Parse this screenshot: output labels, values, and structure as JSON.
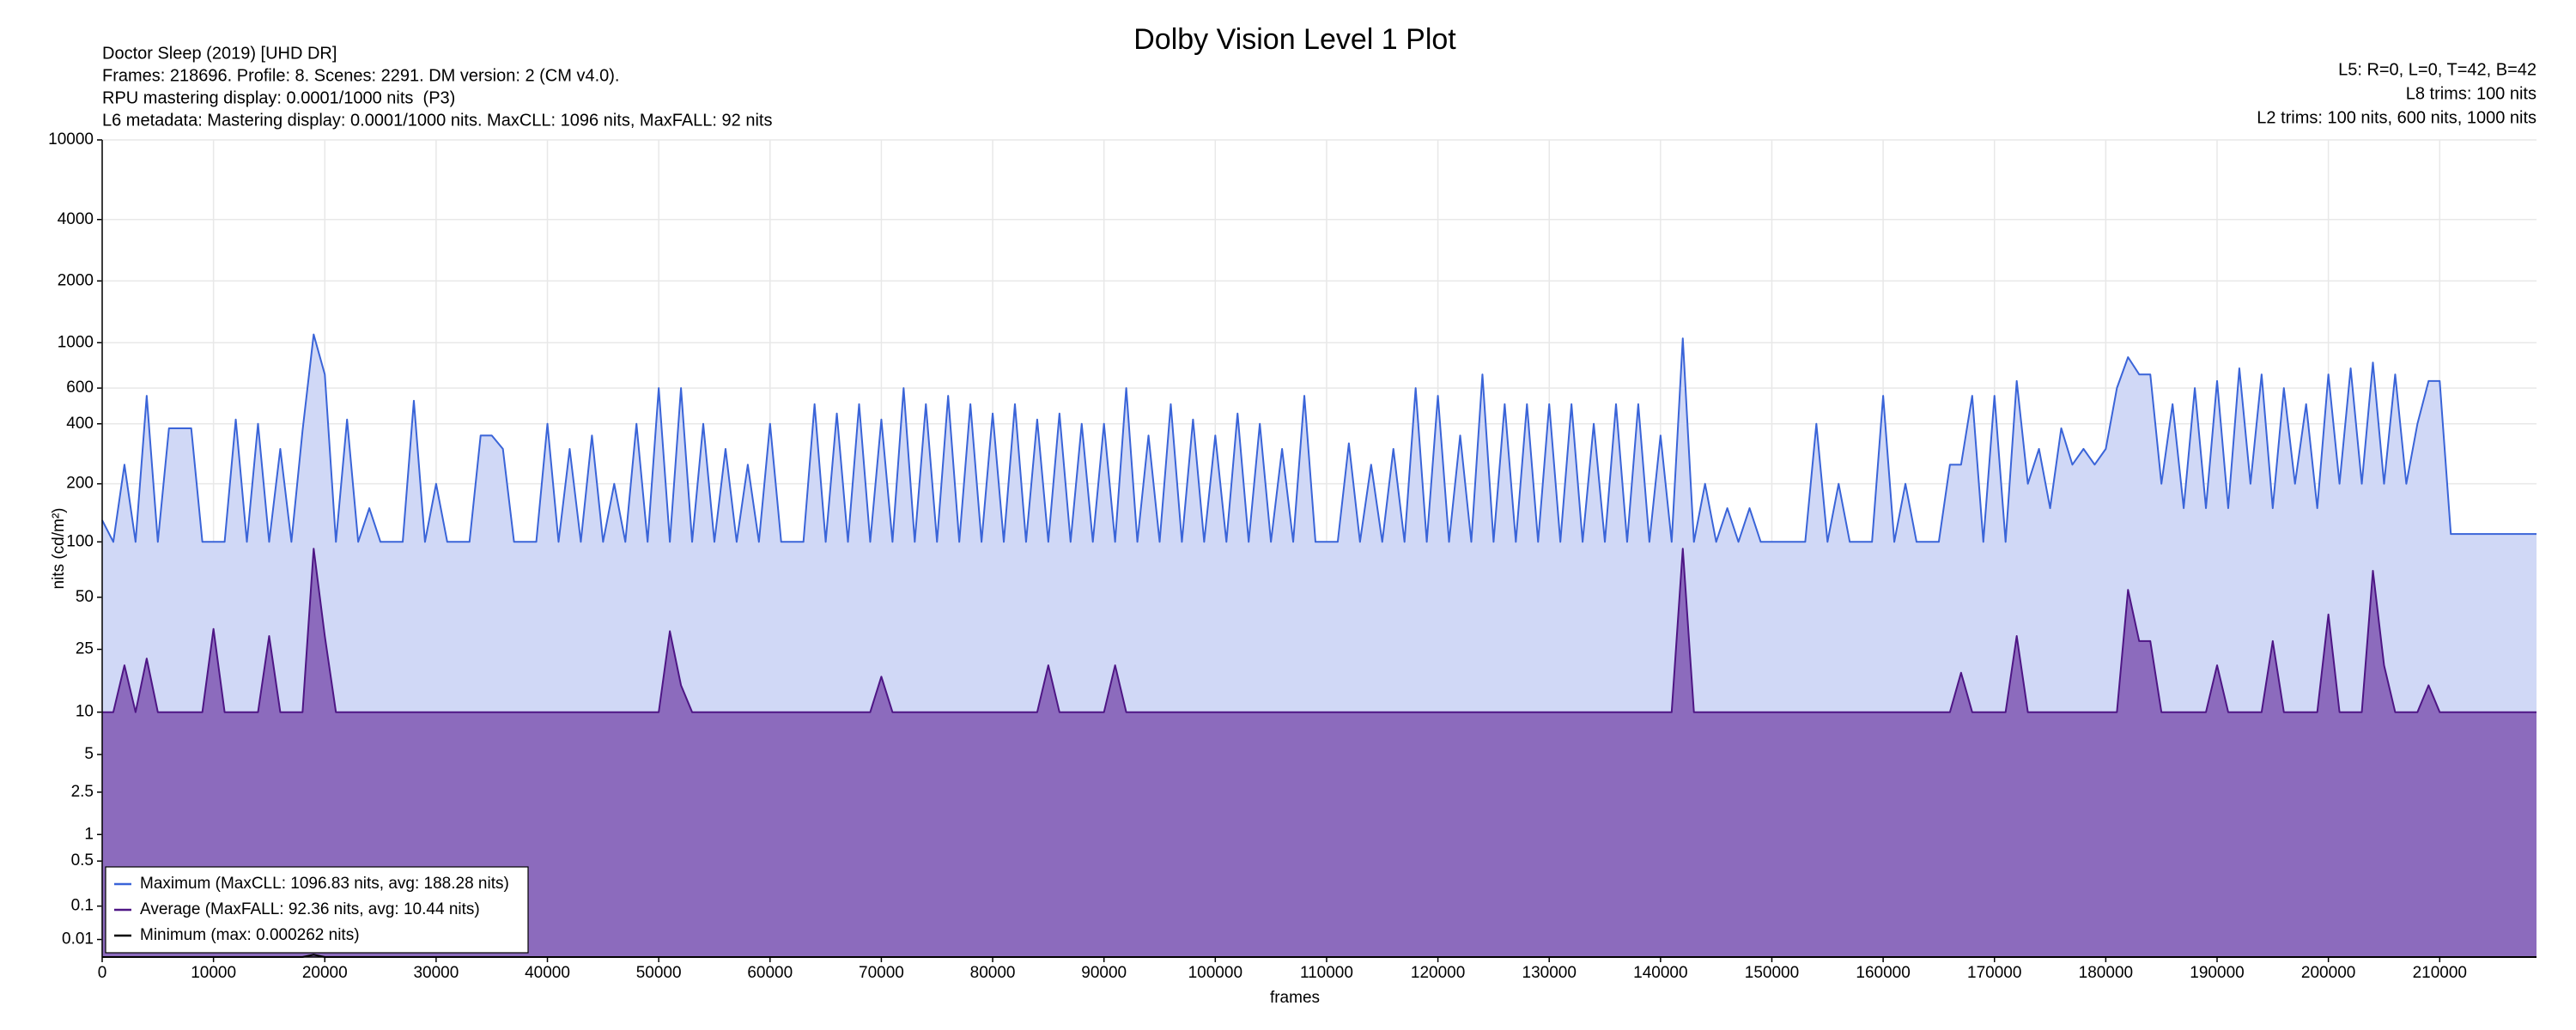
{
  "chart_data": {
    "type": "line",
    "title": "Dolby Vision Level 1 Plot",
    "header_left": [
      "Doctor Sleep (2019) [UHD DR]",
      "Frames: 218696. Profile: 8. Scenes: 2291. DM version: 2 (CM v4.0).",
      "RPU mastering display: 0.0001/1000 nits  (P3)",
      "L6 metadata: Mastering display: 0.0001/1000 nits. MaxCLL: 1096 nits, MaxFALL: 92 nits"
    ],
    "header_right": [
      "L5: R=0, L=0, T=42, B=42",
      "L8 trims: 100 nits",
      "L2 trims: 100 nits, 600 nits, 1000 nits"
    ],
    "xlabel": "frames",
    "ylabel": "nits (cd/m²)",
    "yscale": "pq",
    "grid": true,
    "legend": "lower left",
    "xlim": [
      0,
      218696
    ],
    "xticks": [
      0,
      10000,
      20000,
      30000,
      40000,
      50000,
      60000,
      70000,
      80000,
      90000,
      100000,
      110000,
      120000,
      130000,
      140000,
      150000,
      160000,
      170000,
      180000,
      190000,
      200000,
      210000
    ],
    "ylim": [
      0,
      10000
    ],
    "yticks": [
      0.01,
      0.1,
      0.5,
      1,
      2.5,
      5,
      10,
      25,
      50,
      100,
      200,
      400,
      600,
      1000,
      2000,
      4000,
      10000
    ],
    "x": [
      0,
      1000,
      2000,
      3000,
      4000,
      5000,
      6000,
      7000,
      8000,
      9000,
      10000,
      11000,
      12000,
      13000,
      14000,
      15000,
      16000,
      17000,
      18000,
      19000,
      20000,
      21000,
      22000,
      23000,
      24000,
      25000,
      26000,
      27000,
      28000,
      29000,
      30000,
      31000,
      32000,
      33000,
      34000,
      35000,
      36000,
      37000,
      38000,
      39000,
      40000,
      41000,
      42000,
      43000,
      44000,
      45000,
      46000,
      47000,
      48000,
      49000,
      50000,
      51000,
      52000,
      53000,
      54000,
      55000,
      56000,
      57000,
      58000,
      59000,
      60000,
      61000,
      62000,
      63000,
      64000,
      65000,
      66000,
      67000,
      68000,
      69000,
      70000,
      71000,
      72000,
      73000,
      74000,
      75000,
      76000,
      77000,
      78000,
      79000,
      80000,
      81000,
      82000,
      83000,
      84000,
      85000,
      86000,
      87000,
      88000,
      89000,
      90000,
      91000,
      92000,
      93000,
      94000,
      95000,
      96000,
      97000,
      98000,
      99000,
      100000,
      101000,
      102000,
      103000,
      104000,
      105000,
      106000,
      107000,
      108000,
      109000,
      110000,
      111000,
      112000,
      113000,
      114000,
      115000,
      116000,
      117000,
      118000,
      119000,
      120000,
      121000,
      122000,
      123000,
      124000,
      125000,
      126000,
      127000,
      128000,
      129000,
      130000,
      131000,
      132000,
      133000,
      134000,
      135000,
      136000,
      137000,
      138000,
      139000,
      140000,
      141000,
      142000,
      143000,
      144000,
      145000,
      146000,
      147000,
      148000,
      149000,
      150000,
      151000,
      152000,
      153000,
      154000,
      155000,
      156000,
      157000,
      158000,
      159000,
      160000,
      161000,
      162000,
      163000,
      164000,
      165000,
      166000,
      167000,
      168000,
      169000,
      170000,
      171000,
      172000,
      173000,
      174000,
      175000,
      176000,
      177000,
      178000,
      179000,
      180000,
      181000,
      182000,
      183000,
      184000,
      185000,
      186000,
      187000,
      188000,
      189000,
      190000,
      191000,
      192000,
      193000,
      194000,
      195000,
      196000,
      197000,
      198000,
      199000,
      200000,
      201000,
      202000,
      203000,
      204000,
      205000,
      206000,
      207000,
      208000,
      209000,
      210000,
      211000,
      212000,
      213000,
      214000,
      215000,
      216000,
      217000,
      218000,
      218696
    ],
    "series": [
      {
        "name": "Maximum (MaxCLL: 1096.83 nits, avg: 188.28 nits)",
        "color": "#3a64d8",
        "fill": "#d0d8f6",
        "values": [
          130,
          100,
          250,
          100,
          550,
          100,
          380,
          380,
          380,
          100,
          100,
          100,
          420,
          100,
          400,
          100,
          300,
          100,
          370,
          1097,
          700,
          100,
          420,
          100,
          150,
          100,
          100,
          100,
          520,
          100,
          200,
          100,
          100,
          100,
          350,
          350,
          300,
          100,
          100,
          100,
          400,
          100,
          300,
          100,
          350,
          100,
          200,
          100,
          400,
          100,
          600,
          100,
          600,
          100,
          400,
          100,
          300,
          100,
          250,
          100,
          400,
          100,
          100,
          100,
          500,
          100,
          450,
          100,
          500,
          100,
          420,
          100,
          600,
          100,
          500,
          100,
          550,
          100,
          500,
          100,
          450,
          100,
          500,
          100,
          420,
          100,
          450,
          100,
          400,
          100,
          400,
          100,
          600,
          100,
          350,
          100,
          500,
          100,
          420,
          100,
          350,
          100,
          450,
          100,
          400,
          100,
          300,
          100,
          550,
          100,
          100,
          100,
          320,
          100,
          250,
          100,
          300,
          100,
          600,
          100,
          550,
          100,
          350,
          100,
          700,
          100,
          500,
          100,
          500,
          100,
          500,
          100,
          500,
          100,
          400,
          100,
          500,
          100,
          500,
          100,
          350,
          100,
          1050,
          100,
          200,
          100,
          150,
          100,
          150,
          100,
          100,
          100,
          100,
          100,
          400,
          100,
          200,
          100,
          100,
          100,
          550,
          100,
          200,
          100,
          100,
          100,
          250,
          250,
          550,
          100,
          550,
          100,
          650,
          200,
          300,
          150,
          380,
          250,
          300,
          250,
          300,
          600,
          850,
          700,
          700,
          200,
          500,
          150,
          600,
          150,
          650,
          150,
          750,
          200,
          700,
          150,
          600,
          200,
          500,
          150,
          700,
          200,
          750,
          200,
          800,
          200,
          700,
          200,
          400,
          650,
          650,
          110,
          110,
          110,
          110,
          110,
          110,
          110,
          110,
          110
        ]
      },
      {
        "name": "Average (MaxFALL: 92.36 nits, avg: 10.44 nits)",
        "color": "#4e1685",
        "fill": "#8c6bbd",
        "values": [
          10,
          10,
          20,
          10,
          22,
          10,
          10,
          10,
          10,
          10,
          33,
          10,
          10,
          10,
          10,
          30,
          10,
          10,
          10,
          92,
          30,
          10,
          10,
          10,
          10,
          10,
          10,
          10,
          10,
          10,
          10,
          10,
          10,
          10,
          10,
          10,
          10,
          10,
          10,
          10,
          10,
          10,
          10,
          10,
          10,
          10,
          10,
          10,
          10,
          10,
          10,
          32,
          15,
          10,
          10,
          10,
          10,
          10,
          10,
          10,
          10,
          10,
          10,
          10,
          10,
          10,
          10,
          10,
          10,
          10,
          17,
          10,
          10,
          10,
          10,
          10,
          10,
          10,
          10,
          10,
          10,
          10,
          10,
          10,
          10,
          20,
          10,
          10,
          10,
          10,
          10,
          20,
          10,
          10,
          10,
          10,
          10,
          10,
          10,
          10,
          10,
          10,
          10,
          10,
          10,
          10,
          10,
          10,
          10,
          10,
          10,
          10,
          10,
          10,
          10,
          10,
          10,
          10,
          10,
          10,
          10,
          10,
          10,
          10,
          10,
          10,
          10,
          10,
          10,
          10,
          10,
          10,
          10,
          10,
          10,
          10,
          10,
          10,
          10,
          10,
          10,
          10,
          92,
          10,
          10,
          10,
          10,
          10,
          10,
          10,
          10,
          10,
          10,
          10,
          10,
          10,
          10,
          10,
          10,
          10,
          10,
          10,
          10,
          10,
          10,
          10,
          10,
          18,
          10,
          10,
          10,
          10,
          30,
          10,
          10,
          10,
          10,
          10,
          10,
          10,
          10,
          10,
          55,
          28,
          28,
          10,
          10,
          10,
          10,
          10,
          20,
          10,
          10,
          10,
          10,
          28,
          10,
          10,
          10,
          10,
          40,
          10,
          10,
          10,
          70,
          20,
          10,
          10,
          10,
          15,
          10,
          10,
          10,
          10,
          10,
          10,
          10,
          10,
          10,
          10
        ]
      },
      {
        "name": "Minimum (max: 0.000262 nits)",
        "color": "#000000",
        "values": [
          0,
          0,
          0,
          0,
          0,
          0,
          0,
          0,
          0,
          0,
          0,
          0,
          0,
          0,
          0,
          0,
          0,
          0,
          0,
          0.000262,
          0,
          0,
          0,
          0,
          0,
          0,
          0,
          0,
          0,
          0,
          0,
          0,
          0,
          0,
          0,
          0,
          0,
          0,
          0,
          0,
          0,
          0,
          0,
          0,
          0,
          0,
          0,
          0,
          0,
          0,
          0,
          0,
          0,
          0,
          0,
          0,
          0,
          0,
          0,
          0,
          0,
          0,
          0,
          0,
          0,
          0,
          0,
          0,
          0,
          0,
          0,
          0,
          0,
          0,
          0,
          0,
          0,
          0,
          0,
          0,
          0,
          0,
          0,
          0,
          0,
          0,
          0,
          0,
          0,
          0,
          0,
          0,
          0,
          0,
          0,
          0,
          0,
          0,
          0,
          0,
          0,
          0,
          0,
          0,
          0,
          0,
          0,
          0,
          0,
          0,
          0,
          0,
          0,
          0,
          0,
          0,
          0,
          0,
          0,
          0,
          0,
          0,
          0,
          0,
          0,
          0,
          0,
          0,
          0,
          0,
          0,
          0,
          0,
          0,
          0,
          0,
          0,
          0,
          0,
          0,
          0,
          0,
          0,
          0,
          0,
          0,
          0,
          0,
          0,
          0,
          0,
          0,
          0,
          0,
          0,
          0,
          0,
          0,
          0,
          0,
          0,
          0,
          0,
          0,
          0,
          0,
          0,
          0,
          0,
          0,
          0,
          0,
          0,
          0,
          0,
          0,
          0,
          0,
          0,
          0,
          0,
          0,
          0,
          0,
          0,
          0,
          0,
          0,
          0,
          0,
          0,
          0,
          0,
          0,
          0,
          0,
          0,
          0,
          0,
          0,
          0,
          0,
          0,
          0,
          0,
          0,
          0,
          0,
          0,
          0,
          0,
          0,
          0,
          0,
          0,
          0,
          0,
          0,
          0,
          0
        ]
      }
    ]
  }
}
